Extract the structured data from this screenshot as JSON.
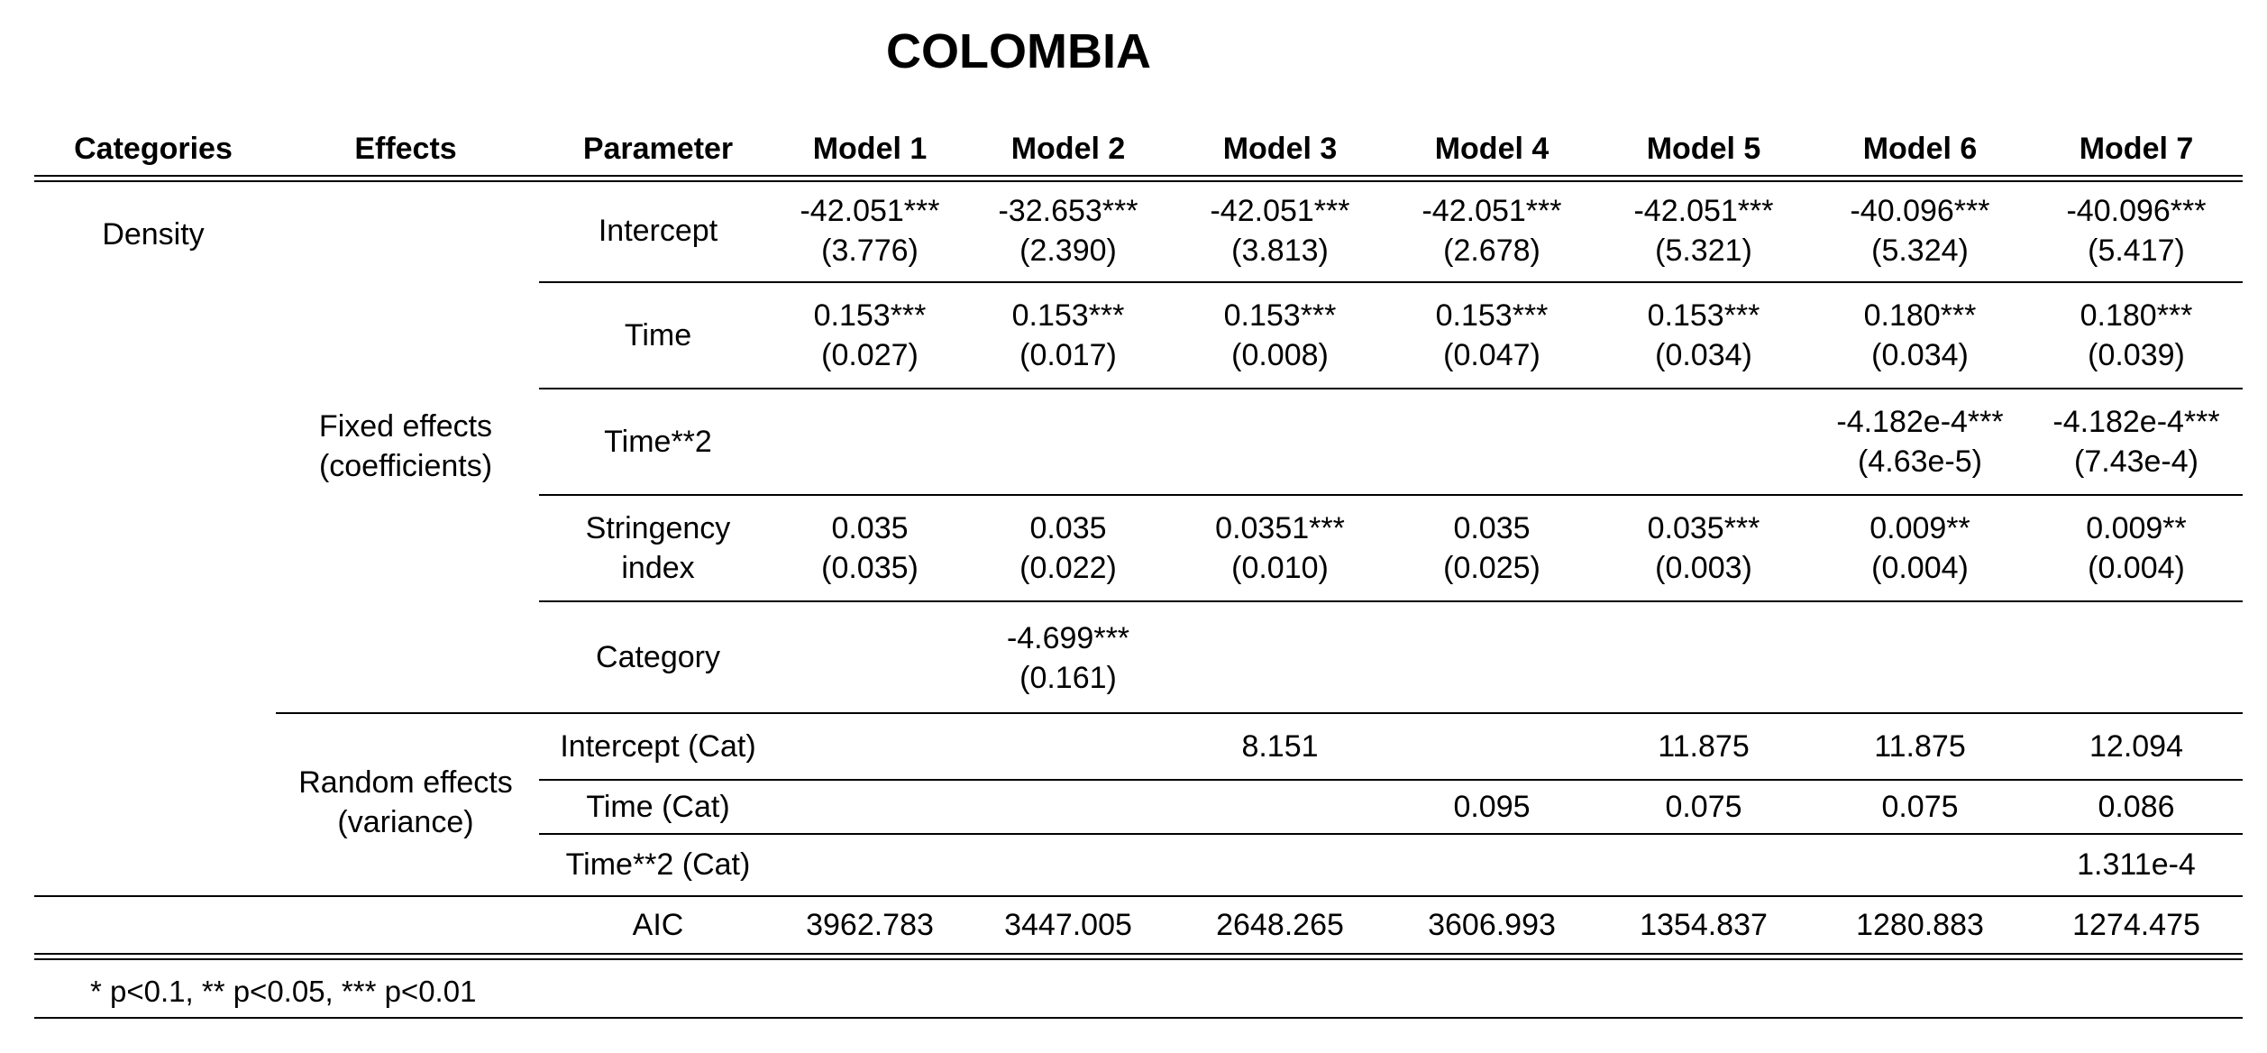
{
  "title": "COLOMBIA",
  "columns": [
    "Categories",
    "Effects",
    "Parameter",
    "Model 1",
    "Model 2",
    "Model 3",
    "Model 4",
    "Model 5",
    "Model 6",
    "Model 7"
  ],
  "category": "Density",
  "effects": {
    "fixed": [
      "Fixed effects",
      "(coefficients)"
    ],
    "random": [
      "Random effects",
      "(variance)"
    ]
  },
  "rows": [
    {
      "param": [
        "Intercept"
      ],
      "cells": [
        [
          "-42.051***",
          "(3.776)"
        ],
        [
          "-32.653***",
          "(2.390)"
        ],
        [
          "-42.051***",
          "(3.813)"
        ],
        [
          "-42.051***",
          "(2.678)"
        ],
        [
          "-42.051***",
          "(5.321)"
        ],
        [
          "-40.096***",
          "(5.324)"
        ],
        [
          "-40.096***",
          "(5.417)"
        ]
      ]
    },
    {
      "param": [
        "Time"
      ],
      "cells": [
        [
          "0.153***",
          "(0.027)"
        ],
        [
          "0.153***",
          "(0.017)"
        ],
        [
          "0.153***",
          "(0.008)"
        ],
        [
          "0.153***",
          "(0.047)"
        ],
        [
          "0.153***",
          "(0.034)"
        ],
        [
          "0.180***",
          "(0.034)"
        ],
        [
          "0.180***",
          "(0.039)"
        ]
      ]
    },
    {
      "param": [
        "Time**2"
      ],
      "cells": [
        [],
        [],
        [],
        [],
        [],
        [
          "-4.182e-4***",
          "(4.63e-5)"
        ],
        [
          "-4.182e-4***",
          "(7.43e-4)"
        ]
      ]
    },
    {
      "param": [
        "Stringency",
        "index"
      ],
      "cells": [
        [
          "0.035",
          "(0.035)"
        ],
        [
          "0.035",
          "(0.022)"
        ],
        [
          "0.0351***",
          "(0.010)"
        ],
        [
          "0.035",
          "(0.025)"
        ],
        [
          "0.035***",
          "(0.003)"
        ],
        [
          "0.009**",
          "(0.004)"
        ],
        [
          "0.009**",
          "(0.004)"
        ]
      ]
    },
    {
      "param": [
        "Category"
      ],
      "cells": [
        [],
        [
          "-4.699***",
          "(0.161)"
        ],
        [],
        [],
        [],
        [],
        []
      ]
    },
    {
      "param": [
        "Intercept (Cat)"
      ],
      "cells": [
        [],
        [],
        [
          "8.151"
        ],
        [],
        [
          "11.875"
        ],
        [
          "11.875"
        ],
        [
          "12.094"
        ]
      ]
    },
    {
      "param": [
        "Time (Cat)"
      ],
      "cells": [
        [],
        [],
        [],
        [
          "0.095"
        ],
        [
          "0.075"
        ],
        [
          "0.075"
        ],
        [
          "0.086"
        ]
      ]
    },
    {
      "param": [
        "Time**2 (Cat)"
      ],
      "cells": [
        [],
        [],
        [],
        [],
        [],
        [],
        [
          "1.311e-4"
        ]
      ]
    }
  ],
  "aic": {
    "label": "AIC",
    "values": [
      "3962.783",
      "3447.005",
      "2648.265",
      "3606.993",
      "1354.837",
      "1280.883",
      "1274.475"
    ]
  },
  "footnote": "* p<0.1, ** p<0.05, *** p<0.01"
}
